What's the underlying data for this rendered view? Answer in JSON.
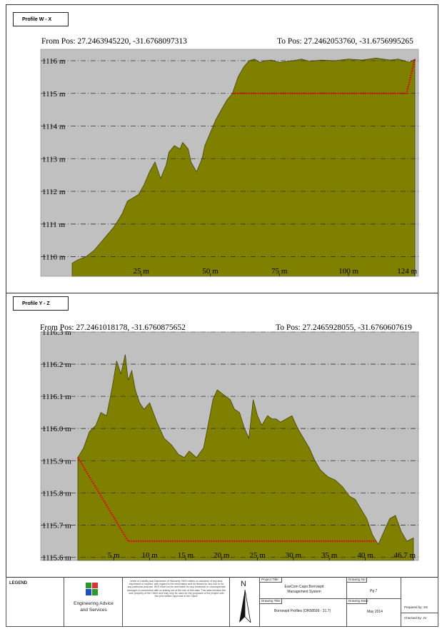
{
  "panels": [
    {
      "tag": "Profile W - X",
      "from_pos": "From Pos: 27.2463945220, -31.6768097313",
      "to_pos": "To Pos: 27.2462053760, -31.6756995265"
    },
    {
      "tag": "Profile Y - Z",
      "from_pos": "From Pos: 27.2461018178, -31.6760875652",
      "to_pos": "To Pos: 27.2465928055, -31.6760607619"
    }
  ],
  "colors": {
    "terrain_fill": "#808000",
    "terrain_edge": "#3b3b00",
    "plot_bg": "#c0c0c0",
    "design_line": "#e00000",
    "grid": "#333333"
  },
  "chart_data": [
    {
      "type": "area",
      "xlim": [
        0,
        124
      ],
      "ylim": [
        1109.4,
        1116.35
      ],
      "xticks": [
        25,
        50,
        75,
        100,
        124
      ],
      "xtick_labels": [
        "25 m",
        "50 m",
        "75 m",
        "100 m",
        "124 m"
      ],
      "yticks": [
        1110,
        1111,
        1112,
        1113,
        1114,
        1115,
        1116
      ],
      "ytick_labels": [
        "1110 m",
        "1111 m",
        "1112 m",
        "1113 m",
        "1114 m",
        "1115 m",
        "1116 m"
      ],
      "grid": "horizontal dash-dot",
      "series": [
        {
          "role": "ground",
          "x": [
            0,
            2,
            5,
            8,
            10,
            12,
            15,
            18,
            20,
            22,
            24,
            26,
            28,
            30,
            32,
            34,
            35,
            37,
            39,
            40,
            42,
            43,
            45,
            47,
            48,
            50,
            52,
            54,
            56,
            58,
            60,
            62,
            64,
            66,
            68,
            70,
            72,
            75,
            78,
            80,
            83,
            86,
            90,
            95,
            100,
            105,
            110,
            115,
            118,
            120,
            122,
            124
          ],
          "y": [
            1109.8,
            1109.9,
            1110.0,
            1110.2,
            1110.4,
            1110.6,
            1110.9,
            1111.3,
            1111.7,
            1111.8,
            1111.9,
            1112.2,
            1112.6,
            1112.9,
            1112.4,
            1112.8,
            1113.2,
            1113.4,
            1113.3,
            1113.5,
            1113.3,
            1112.9,
            1112.6,
            1113.0,
            1113.4,
            1113.8,
            1114.2,
            1114.5,
            1114.8,
            1115.0,
            1115.5,
            1115.8,
            1116.0,
            1116.05,
            1115.95,
            1116.0,
            1116.02,
            1115.95,
            1115.98,
            1116.0,
            1116.05,
            1115.98,
            1116.02,
            1116.0,
            1116.05,
            1116.02,
            1116.08,
            1116.02,
            1116.05,
            1116.0,
            1115.95,
            1116.05
          ]
        },
        {
          "role": "design",
          "x": [
            0,
            58,
            58,
            121,
            124
          ],
          "y": [
            null,
            null,
            1115.0,
            1115.0,
            1116.05
          ]
        }
      ]
    },
    {
      "type": "area",
      "xlim": [
        0,
        46.7
      ],
      "ylim": [
        1115.59,
        1116.3
      ],
      "xticks": [
        5,
        10,
        15,
        20,
        25,
        30,
        35,
        40,
        46.7
      ],
      "xtick_labels": [
        "5 m",
        "10 m",
        "15 m",
        "20 m",
        "25 m",
        "30 m",
        "35 m",
        "40 m",
        "46.7 m"
      ],
      "yticks": [
        1115.6,
        1115.7,
        1115.8,
        1115.9,
        1116.0,
        1116.1,
        1116.2,
        1116.3
      ],
      "ytick_labels": [
        "1115.6 m",
        "1115.7 m",
        "1115.8 m",
        "1115.9 m",
        "1116.0 m",
        "1116.1 m",
        "1116.2 m",
        "1116.3 m"
      ],
      "grid": "horizontal dash-dot",
      "series": [
        {
          "role": "ground",
          "x": [
            0,
            0.8,
            1.6,
            2.5,
            3.2,
            4.0,
            4.8,
            5.4,
            6.0,
            6.6,
            7.0,
            7.5,
            8.0,
            8.6,
            9.2,
            10.0,
            11.0,
            12.0,
            13.0,
            14.0,
            14.8,
            15.5,
            16.5,
            17.5,
            18.2,
            18.8,
            19.4,
            20.0,
            20.6,
            21.2,
            21.8,
            22.5,
            23.2,
            23.8,
            24.4,
            25.0,
            25.6,
            26.4,
            27.0,
            27.6,
            28.2,
            29.0,
            29.8,
            30.6,
            31.4,
            32.2,
            33.0,
            33.8,
            34.8,
            35.8,
            36.8,
            37.8,
            38.6,
            39.4,
            40.2,
            41.0,
            41.8,
            42.6,
            43.4,
            44.2,
            45.0,
            45.8,
            46.7
          ],
          "y": [
            1115.91,
            1115.94,
            1115.99,
            1116.01,
            1116.05,
            1116.04,
            1116.13,
            1116.21,
            1116.17,
            1116.23,
            1116.15,
            1116.18,
            1116.12,
            1116.08,
            1116.06,
            1116.08,
            1116.02,
            1115.97,
            1115.95,
            1115.92,
            1115.91,
            1115.93,
            1115.91,
            1115.94,
            1116.02,
            1116.09,
            1116.12,
            1116.11,
            1116.1,
            1116.09,
            1116.06,
            1116.05,
            1116.0,
            1115.97,
            1116.09,
            1116.04,
            1116.01,
            1116.04,
            1116.03,
            1116.03,
            1116.02,
            1116.03,
            1116.04,
            1116.0,
            1115.97,
            1115.94,
            1115.9,
            1115.87,
            1115.85,
            1115.84,
            1115.82,
            1115.79,
            1115.78,
            1115.75,
            1115.72,
            1115.67,
            1115.64,
            1115.68,
            1115.72,
            1115.73,
            1115.68,
            1115.65,
            1115.66
          ]
        },
        {
          "role": "design",
          "x": [
            0,
            7.0,
            41.5
          ],
          "y": [
            1115.91,
            1115.65,
            1115.65
          ]
        }
      ]
    }
  ],
  "titleblock": {
    "legend_label": "LEGEND",
    "logo_text_line1": "Engineering Advice",
    "logo_text_line2": "and Services",
    "north_label": "N",
    "disclaimer": "Limits of Liability and Disclaimer of Warranty: BKS makes no warranty of any kind, expressed or implied, with regard to the information and its fitness for any use or for any particular purpose. BKS shall not be held liable for any incidental or consequential damages in connection with or arising out of the use of this data. This data remains the sole property of the Client and may only be used for the purposes of the project with the prior written approval of the Client.",
    "project_title_label": "Project Title:",
    "project_title": "EasCom Capo Borrowpit Management System",
    "drawing_title_label": "Drawing Title:",
    "drawing_title": "Borrowpit Profiles (DR58599 - 31.7)",
    "drawing_no_label": "Drawing No:",
    "drawing_no": "Pg 7",
    "drawing_date_label": "Drawing Date:",
    "drawing_date": "May 2014",
    "prepared_by": "Prepared by: SS",
    "checked_by": "Checked by: JV"
  }
}
